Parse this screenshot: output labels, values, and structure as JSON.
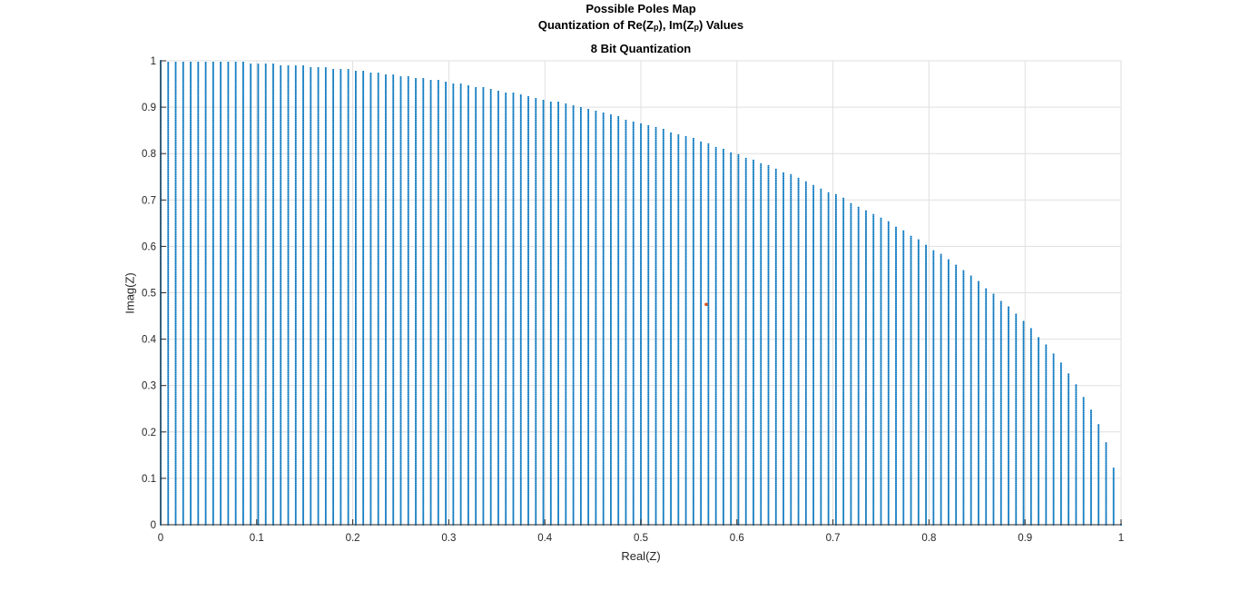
{
  "titles": {
    "line1": "Possible Poles Map",
    "line2_prefix": "Quantization of Re(Z",
    "line2_sub1": "p",
    "line2_middle": "), Im(Z",
    "line2_sub2": "p",
    "line2_suffix": ") Values",
    "line3": "8 Bit Quantization"
  },
  "colors": {
    "grid_points": "#0072BD",
    "highlight_point": "#D95319",
    "gridlines": "#DFDFDF",
    "axes": "#262626"
  },
  "chart_data": {
    "type": "scatter",
    "title": "Possible Poles Map",
    "subtitle": [
      "Quantization of Re(Zp), Im(Zp) Values",
      "8 Bit Quantization"
    ],
    "xlabel": "Real(Z)",
    "ylabel": "Imag(Z)",
    "xlim": [
      0,
      1
    ],
    "ylim": [
      0,
      1
    ],
    "grid": true,
    "x_ticks": [
      "0",
      "0.1",
      "0.2",
      "0.3",
      "0.4",
      "0.5",
      "0.6",
      "0.7",
      "0.8",
      "0.9",
      "1"
    ],
    "y_ticks": [
      "0",
      "0.1",
      "0.2",
      "0.3",
      "0.4",
      "0.5",
      "0.6",
      "0.7",
      "0.8",
      "0.9",
      "1"
    ],
    "series": [
      {
        "marker": "dot",
        "color": "#0072BD",
        "description_rule": "all (Re, Im) pairs on a uniform 8-bit grid, step 1/128 in Re and 1/256 in Im, with Re^2 + Im^2 <= 1",
        "re_step": 0.0078125,
        "im_step": 0.00390625,
        "region": "unit quarter disc"
      },
      {
        "marker": "dot",
        "color": "#D95319",
        "points": [
          [
            0.568,
            0.475
          ]
        ]
      }
    ]
  }
}
